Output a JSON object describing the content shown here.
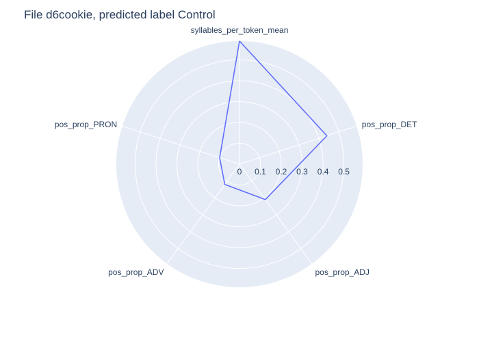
{
  "chart_data": {
    "type": "radar",
    "title": "File d6cookie, predicted label Control",
    "categories": [
      "syllables_per_token_mean",
      "pos_prop_DET",
      "pos_prop_ADJ",
      "pos_prop_ADV",
      "pos_prop_PRON"
    ],
    "series": [
      {
        "values": [
          0.59,
          0.44,
          0.21,
          0.12,
          0.1
        ],
        "color": "#636efa"
      }
    ],
    "radial_ticks": [
      "0",
      "0.1",
      "0.2",
      "0.3",
      "0.4",
      "0.5"
    ],
    "radial_tick_values": [
      0,
      0.1,
      0.2,
      0.3,
      0.4,
      0.5
    ],
    "rmax": 0.59,
    "background_color": "#e5ecf6",
    "grid": true
  }
}
